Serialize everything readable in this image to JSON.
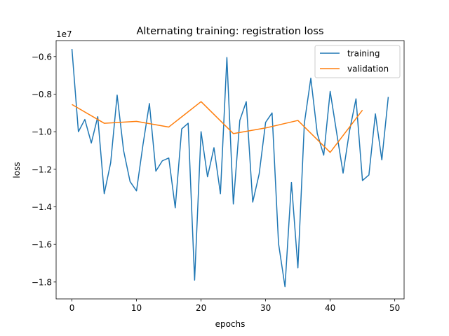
{
  "chart_data": {
    "type": "line",
    "title": "Alternating training: registration loss",
    "xlabel": "epochs",
    "ylabel": "loss",
    "y_offset_label": "1e7",
    "xlim": [
      -2.45,
      51.45
    ],
    "ylim": [
      -18900000.0,
      -5150000.0
    ],
    "xticks": [
      0,
      10,
      20,
      30,
      40,
      50
    ],
    "yticks": [
      -18000000.0,
      -16000000.0,
      -14000000.0,
      -12000000.0,
      -10000000.0,
      -8000000.0,
      -6000000.0
    ],
    "ytick_labels": [
      "−1.8",
      "−1.6",
      "−1.4",
      "−1.2",
      "−1.0",
      "−0.8",
      "−0.6"
    ],
    "grid": false,
    "legend_position": "top-right",
    "series": [
      {
        "name": "training",
        "color": "#1f77b4",
        "x": [
          0,
          1,
          2,
          3,
          4,
          5,
          6,
          7,
          8,
          9,
          10,
          11,
          12,
          13,
          14,
          15,
          16,
          17,
          18,
          19,
          20,
          21,
          22,
          23,
          24,
          25,
          26,
          27,
          28,
          29,
          30,
          31,
          32,
          33,
          34,
          35,
          36,
          37,
          38,
          39,
          40,
          41,
          42,
          43,
          44,
          45,
          46,
          47,
          48,
          49
        ],
        "y": [
          -5600000.0,
          -10000000.0,
          -9350000.0,
          -10600000.0,
          -9200000.0,
          -13300000.0,
          -11650000.0,
          -8050000.0,
          -11000000.0,
          -12650000.0,
          -13150000.0,
          -10700000.0,
          -8500000.0,
          -12100000.0,
          -11550000.0,
          -11400000.0,
          -14050000.0,
          -9850000.0,
          -9550000.0,
          -17900000.0,
          -10000000.0,
          -12400000.0,
          -10850000.0,
          -13300000.0,
          -6050000.0,
          -13850000.0,
          -9400000.0,
          -8400000.0,
          -13750000.0,
          -12250000.0,
          -9500000.0,
          -9000000.0,
          -15950000.0,
          -18250000.0,
          -12700000.0,
          -17250000.0,
          -9550000.0,
          -7150000.0,
          -10100000.0,
          -11250000.0,
          -7850000.0,
          -10050000.0,
          -12200000.0,
          -9950000.0,
          -8250000.0,
          -12600000.0,
          -12300000.0,
          -9050000.0,
          -11500000.0,
          -8150000.0
        ]
      },
      {
        "name": "validation",
        "color": "#ff7f0e",
        "x": [
          0,
          5,
          10,
          15,
          20,
          25,
          30,
          35,
          40,
          45
        ],
        "y": [
          -8550000.0,
          -9550000.0,
          -9450000.0,
          -9750000.0,
          -8400000.0,
          -10100000.0,
          -9800000.0,
          -9400000.0,
          -11100000.0,
          -8850000.0
        ]
      }
    ]
  }
}
